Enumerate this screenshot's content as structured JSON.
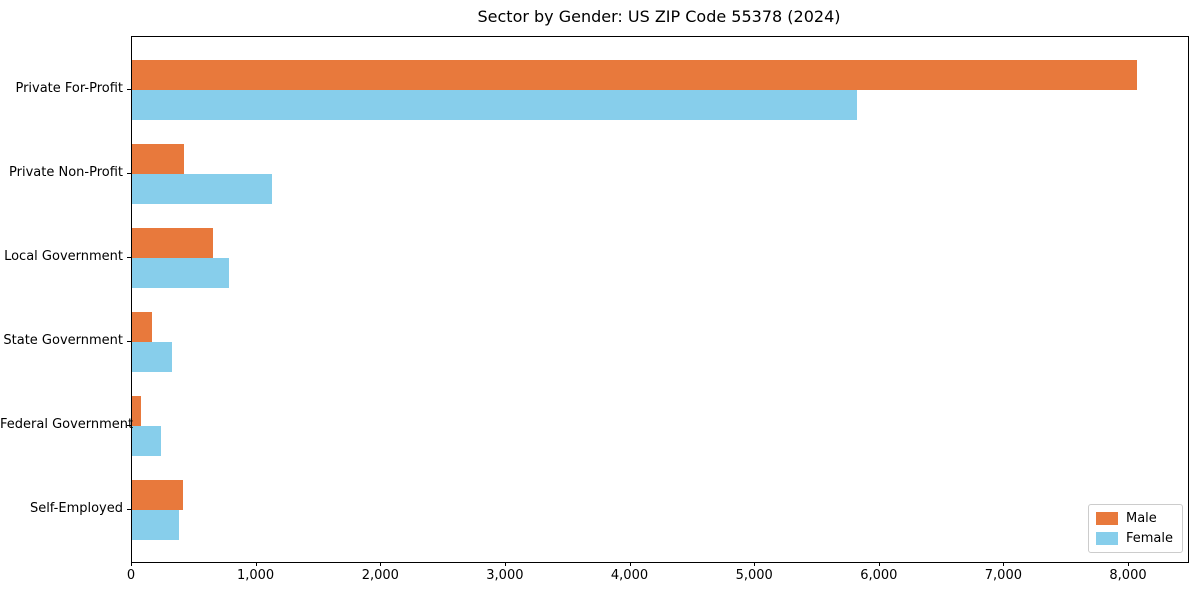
{
  "title": "Sector by Gender: US ZIP Code 55378 (2024)",
  "colors": {
    "male": "#E8793C",
    "female": "#87CEEB",
    "spine": "#000000",
    "background": "#ffffff",
    "legend_border": "#cccccc"
  },
  "legend": {
    "position": "lower right",
    "items": [
      {
        "label": "Male",
        "color": "#E8793C"
      },
      {
        "label": "Female",
        "color": "#87CEEB"
      }
    ]
  },
  "chart_data": {
    "type": "bar",
    "orientation": "horizontal",
    "title": "Sector by Gender: US ZIP Code 55378 (2024)",
    "categories": [
      "Private For-Profit",
      "Private Non-Profit",
      "Local Government",
      "State Government",
      "Federal Government",
      "Self-Employed"
    ],
    "series": [
      {
        "name": "Male",
        "color": "#E8793C",
        "values": [
          8060,
          420,
          650,
          160,
          75,
          410
        ]
      },
      {
        "name": "Female",
        "color": "#87CEEB",
        "values": [
          5820,
          1120,
          780,
          320,
          230,
          380
        ]
      }
    ],
    "xlabel": "",
    "ylabel": "",
    "xlim": [
      0,
      8473
    ],
    "xticks": [
      0,
      1000,
      2000,
      3000,
      4000,
      5000,
      6000,
      7000,
      8000
    ],
    "xtick_labels": [
      "0",
      "1,000",
      "2,000",
      "3,000",
      "4,000",
      "5,000",
      "6,000",
      "7,000",
      "8,000"
    ],
    "grid": false,
    "legend_position": "lower right"
  }
}
